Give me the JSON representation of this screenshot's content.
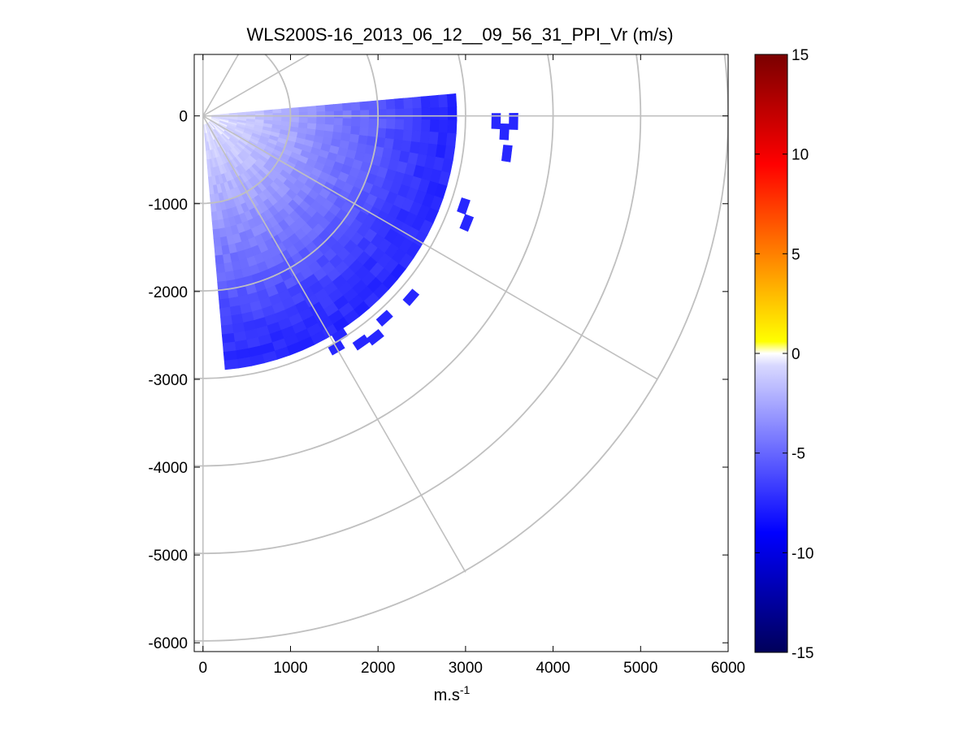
{
  "chart_data": {
    "type": "heatmap",
    "subtype": "polar-ppi-scan",
    "title": "WLS200S-16_2013_06_12__09_56_31_PPI_Vr (m/s)",
    "xlabel_base": "m.s",
    "xlabel_exp": "-1",
    "ylabel": "",
    "xlim": [
      -100,
      6000
    ],
    "ylim": [
      -6100,
      700
    ],
    "xticks": [
      0,
      1000,
      2000,
      3000,
      4000,
      5000,
      6000
    ],
    "yticks": [
      0,
      -1000,
      -2000,
      -3000,
      -4000,
      -5000,
      -6000
    ],
    "grid": true,
    "polar_grid": {
      "range_rings_m": [
        1000,
        2000,
        3000,
        4000,
        5000,
        6000
      ],
      "spoke_angles_deg": [
        0,
        -30,
        -60,
        30,
        60
      ]
    },
    "scan": {
      "azimuth_start_deg": 5,
      "azimuth_end_deg": -85,
      "azimuth_step_deg": 3,
      "range_start_m": 100,
      "range_step_m": 100,
      "data_range_max_m": 2900,
      "velocity_profile": {
        "range_m": [
          100,
          500,
          1000,
          1500,
          2000,
          2500,
          2900
        ],
        "vr_ms": [
          -0.4,
          -1.2,
          -2.6,
          -4.2,
          -5.6,
          -7.0,
          -7.6
        ]
      },
      "outliers": [
        {
          "range_m": 3300,
          "azimuth_deg": -1,
          "vr_ms": -7.5
        },
        {
          "range_m": 3400,
          "azimuth_deg": -3,
          "vr_ms": -7.5
        },
        {
          "range_m": 3500,
          "azimuth_deg": -1,
          "vr_ms": -7.5
        },
        {
          "range_m": 3450,
          "azimuth_deg": -7,
          "vr_ms": -7.5
        },
        {
          "range_m": 3100,
          "azimuth_deg": -19,
          "vr_ms": -7.5
        },
        {
          "range_m": 3200,
          "azimuth_deg": -22,
          "vr_ms": -7.5
        },
        {
          "range_m": 3100,
          "azimuth_deg": -41,
          "vr_ms": -7.5
        },
        {
          "range_m": 3050,
          "azimuth_deg": -48,
          "vr_ms": -7.5
        },
        {
          "range_m": 3150,
          "azimuth_deg": -52,
          "vr_ms": -7.5
        },
        {
          "range_m": 3100,
          "azimuth_deg": -55,
          "vr_ms": -7.5
        },
        {
          "range_m": 2900,
          "azimuth_deg": -58,
          "vr_ms": -7.5
        },
        {
          "range_m": 3000,
          "azimuth_deg": -60,
          "vr_ms": -7.5
        }
      ]
    },
    "colorbar": {
      "clim": [
        -15,
        15
      ],
      "ticks": [
        15,
        10,
        5,
        0,
        -5,
        -10,
        -15
      ],
      "colormap": [
        "#00005a",
        "#0000ff",
        "#d8d8ff",
        "#ffffff",
        "#ffff00",
        "#ff8000",
        "#ff0000",
        "#7a0000"
      ]
    }
  }
}
